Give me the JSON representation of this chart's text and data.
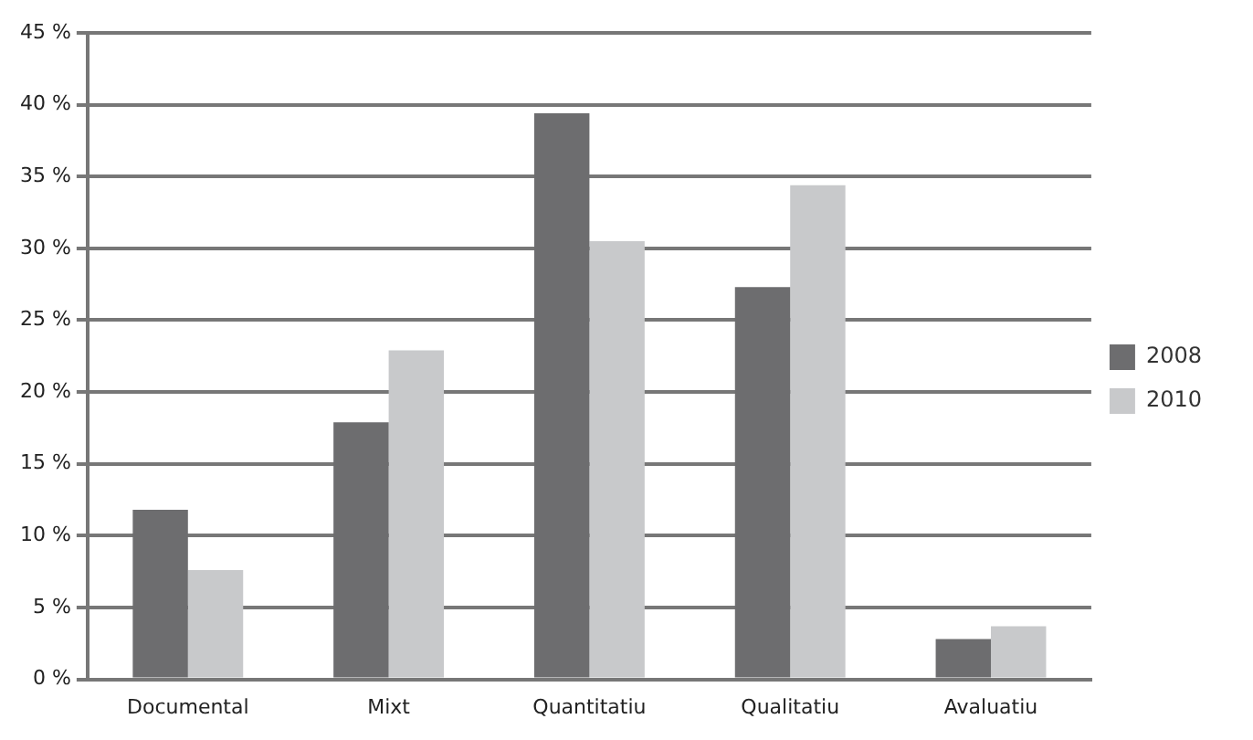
{
  "chart_data": {
    "type": "bar",
    "categories": [
      "Documental",
      "Mixt",
      "Quantitatiu",
      "Qualitatiu",
      "Avaluatiu"
    ],
    "series": [
      {
        "name": "2008",
        "color": "#6d6d6f",
        "values": [
          11.8,
          17.9,
          39.4,
          27.3,
          2.8
        ]
      },
      {
        "name": "2010",
        "color": "#c8c9cb",
        "values": [
          7.6,
          22.9,
          30.5,
          34.4,
          3.7
        ]
      }
    ],
    "ylim": [
      0,
      45
    ],
    "yticks": [
      {
        "value": 0,
        "label": "0 %"
      },
      {
        "value": 5,
        "label": "5 %"
      },
      {
        "value": 10,
        "label": "10 %"
      },
      {
        "value": 15,
        "label": "15 %"
      },
      {
        "value": 20,
        "label": "20 %"
      },
      {
        "value": 25,
        "label": "25 %"
      },
      {
        "value": 30,
        "label": "30 %"
      },
      {
        "value": 35,
        "label": "35 %"
      },
      {
        "value": 40,
        "label": "40 %"
      },
      {
        "value": 45,
        "label": "45 %"
      }
    ],
    "grid": "y",
    "legend": "right"
  }
}
